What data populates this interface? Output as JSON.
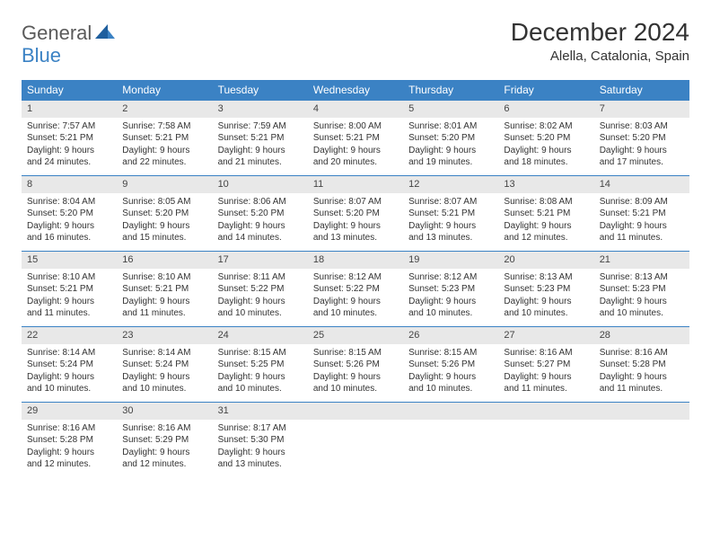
{
  "brand": {
    "part1": "General",
    "part2": "Blue"
  },
  "title": "December 2024",
  "location": "Alella, Catalonia, Spain",
  "colors": {
    "header_bg": "#3b82c4",
    "header_fg": "#ffffff",
    "daynum_bg": "#e8e8e8",
    "border": "#3b82c4",
    "text": "#333333"
  },
  "weekdays": [
    "Sunday",
    "Monday",
    "Tuesday",
    "Wednesday",
    "Thursday",
    "Friday",
    "Saturday"
  ],
  "weeks": [
    [
      {
        "n": "1",
        "sr": "Sunrise: 7:57 AM",
        "ss": "Sunset: 5:21 PM",
        "d1": "Daylight: 9 hours",
        "d2": "and 24 minutes."
      },
      {
        "n": "2",
        "sr": "Sunrise: 7:58 AM",
        "ss": "Sunset: 5:21 PM",
        "d1": "Daylight: 9 hours",
        "d2": "and 22 minutes."
      },
      {
        "n": "3",
        "sr": "Sunrise: 7:59 AM",
        "ss": "Sunset: 5:21 PM",
        "d1": "Daylight: 9 hours",
        "d2": "and 21 minutes."
      },
      {
        "n": "4",
        "sr": "Sunrise: 8:00 AM",
        "ss": "Sunset: 5:21 PM",
        "d1": "Daylight: 9 hours",
        "d2": "and 20 minutes."
      },
      {
        "n": "5",
        "sr": "Sunrise: 8:01 AM",
        "ss": "Sunset: 5:20 PM",
        "d1": "Daylight: 9 hours",
        "d2": "and 19 minutes."
      },
      {
        "n": "6",
        "sr": "Sunrise: 8:02 AM",
        "ss": "Sunset: 5:20 PM",
        "d1": "Daylight: 9 hours",
        "d2": "and 18 minutes."
      },
      {
        "n": "7",
        "sr": "Sunrise: 8:03 AM",
        "ss": "Sunset: 5:20 PM",
        "d1": "Daylight: 9 hours",
        "d2": "and 17 minutes."
      }
    ],
    [
      {
        "n": "8",
        "sr": "Sunrise: 8:04 AM",
        "ss": "Sunset: 5:20 PM",
        "d1": "Daylight: 9 hours",
        "d2": "and 16 minutes."
      },
      {
        "n": "9",
        "sr": "Sunrise: 8:05 AM",
        "ss": "Sunset: 5:20 PM",
        "d1": "Daylight: 9 hours",
        "d2": "and 15 minutes."
      },
      {
        "n": "10",
        "sr": "Sunrise: 8:06 AM",
        "ss": "Sunset: 5:20 PM",
        "d1": "Daylight: 9 hours",
        "d2": "and 14 minutes."
      },
      {
        "n": "11",
        "sr": "Sunrise: 8:07 AM",
        "ss": "Sunset: 5:20 PM",
        "d1": "Daylight: 9 hours",
        "d2": "and 13 minutes."
      },
      {
        "n": "12",
        "sr": "Sunrise: 8:07 AM",
        "ss": "Sunset: 5:21 PM",
        "d1": "Daylight: 9 hours",
        "d2": "and 13 minutes."
      },
      {
        "n": "13",
        "sr": "Sunrise: 8:08 AM",
        "ss": "Sunset: 5:21 PM",
        "d1": "Daylight: 9 hours",
        "d2": "and 12 minutes."
      },
      {
        "n": "14",
        "sr": "Sunrise: 8:09 AM",
        "ss": "Sunset: 5:21 PM",
        "d1": "Daylight: 9 hours",
        "d2": "and 11 minutes."
      }
    ],
    [
      {
        "n": "15",
        "sr": "Sunrise: 8:10 AM",
        "ss": "Sunset: 5:21 PM",
        "d1": "Daylight: 9 hours",
        "d2": "and 11 minutes."
      },
      {
        "n": "16",
        "sr": "Sunrise: 8:10 AM",
        "ss": "Sunset: 5:21 PM",
        "d1": "Daylight: 9 hours",
        "d2": "and 11 minutes."
      },
      {
        "n": "17",
        "sr": "Sunrise: 8:11 AM",
        "ss": "Sunset: 5:22 PM",
        "d1": "Daylight: 9 hours",
        "d2": "and 10 minutes."
      },
      {
        "n": "18",
        "sr": "Sunrise: 8:12 AM",
        "ss": "Sunset: 5:22 PM",
        "d1": "Daylight: 9 hours",
        "d2": "and 10 minutes."
      },
      {
        "n": "19",
        "sr": "Sunrise: 8:12 AM",
        "ss": "Sunset: 5:23 PM",
        "d1": "Daylight: 9 hours",
        "d2": "and 10 minutes."
      },
      {
        "n": "20",
        "sr": "Sunrise: 8:13 AM",
        "ss": "Sunset: 5:23 PM",
        "d1": "Daylight: 9 hours",
        "d2": "and 10 minutes."
      },
      {
        "n": "21",
        "sr": "Sunrise: 8:13 AM",
        "ss": "Sunset: 5:23 PM",
        "d1": "Daylight: 9 hours",
        "d2": "and 10 minutes."
      }
    ],
    [
      {
        "n": "22",
        "sr": "Sunrise: 8:14 AM",
        "ss": "Sunset: 5:24 PM",
        "d1": "Daylight: 9 hours",
        "d2": "and 10 minutes."
      },
      {
        "n": "23",
        "sr": "Sunrise: 8:14 AM",
        "ss": "Sunset: 5:24 PM",
        "d1": "Daylight: 9 hours",
        "d2": "and 10 minutes."
      },
      {
        "n": "24",
        "sr": "Sunrise: 8:15 AM",
        "ss": "Sunset: 5:25 PM",
        "d1": "Daylight: 9 hours",
        "d2": "and 10 minutes."
      },
      {
        "n": "25",
        "sr": "Sunrise: 8:15 AM",
        "ss": "Sunset: 5:26 PM",
        "d1": "Daylight: 9 hours",
        "d2": "and 10 minutes."
      },
      {
        "n": "26",
        "sr": "Sunrise: 8:15 AM",
        "ss": "Sunset: 5:26 PM",
        "d1": "Daylight: 9 hours",
        "d2": "and 10 minutes."
      },
      {
        "n": "27",
        "sr": "Sunrise: 8:16 AM",
        "ss": "Sunset: 5:27 PM",
        "d1": "Daylight: 9 hours",
        "d2": "and 11 minutes."
      },
      {
        "n": "28",
        "sr": "Sunrise: 8:16 AM",
        "ss": "Sunset: 5:28 PM",
        "d1": "Daylight: 9 hours",
        "d2": "and 11 minutes."
      }
    ],
    [
      {
        "n": "29",
        "sr": "Sunrise: 8:16 AM",
        "ss": "Sunset: 5:28 PM",
        "d1": "Daylight: 9 hours",
        "d2": "and 12 minutes."
      },
      {
        "n": "30",
        "sr": "Sunrise: 8:16 AM",
        "ss": "Sunset: 5:29 PM",
        "d1": "Daylight: 9 hours",
        "d2": "and 12 minutes."
      },
      {
        "n": "31",
        "sr": "Sunrise: 8:17 AM",
        "ss": "Sunset: 5:30 PM",
        "d1": "Daylight: 9 hours",
        "d2": "and 13 minutes."
      },
      {
        "n": "",
        "sr": "",
        "ss": "",
        "d1": "",
        "d2": ""
      },
      {
        "n": "",
        "sr": "",
        "ss": "",
        "d1": "",
        "d2": ""
      },
      {
        "n": "",
        "sr": "",
        "ss": "",
        "d1": "",
        "d2": ""
      },
      {
        "n": "",
        "sr": "",
        "ss": "",
        "d1": "",
        "d2": ""
      }
    ]
  ]
}
